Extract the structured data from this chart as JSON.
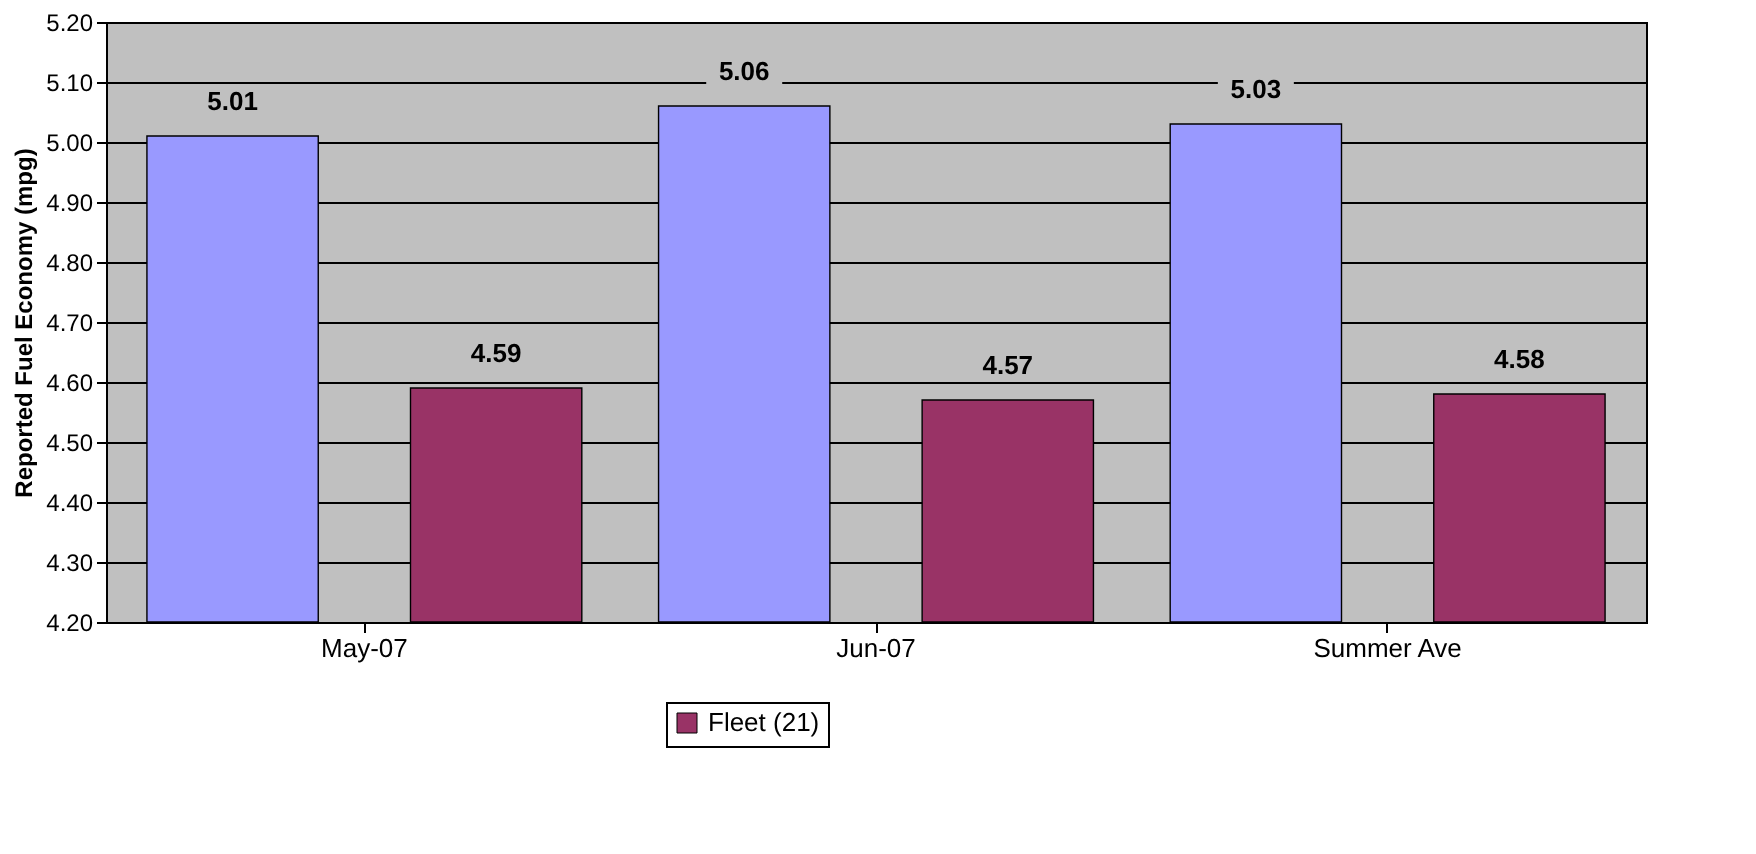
{
  "chart_data": {
    "type": "bar",
    "ylabel": "Reported Fuel Economy (mpg)",
    "categories": [
      "May-07",
      "Jun-07",
      "Summer Ave"
    ],
    "series": [
      {
        "color": "#9999ff",
        "values": [
          5.01,
          5.06,
          5.03
        ]
      },
      {
        "name": "Fleet (21)",
        "color": "#993366",
        "values": [
          4.59,
          4.57,
          4.58
        ]
      }
    ],
    "ylim": [
      4.2,
      5.2
    ],
    "yticks": [
      {
        "value": 4.2,
        "label": "4.20"
      },
      {
        "value": 4.3,
        "label": "4.30"
      },
      {
        "value": 4.4,
        "label": "4.40"
      },
      {
        "value": 4.5,
        "label": "4.50"
      },
      {
        "value": 4.6,
        "label": "4.60"
      },
      {
        "value": 4.7,
        "label": "4.70"
      },
      {
        "value": 4.8,
        "label": "4.80"
      },
      {
        "value": 4.9,
        "label": "4.90"
      },
      {
        "value": 5.0,
        "label": "5.00"
      },
      {
        "value": 5.1,
        "label": "5.10"
      },
      {
        "value": 5.2,
        "label": "5.20"
      }
    ],
    "data_labels": true,
    "grid": "y",
    "legend": "bottom"
  }
}
